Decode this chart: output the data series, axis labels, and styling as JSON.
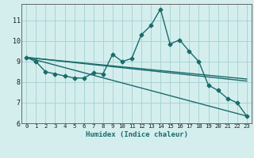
{
  "xlabel": "Humidex (Indice chaleur)",
  "background_color": "#d4eeee",
  "grid_color": "#aad4d4",
  "line_color": "#1a6b6b",
  "xlim": [
    -0.5,
    23.5
  ],
  "ylim": [
    6,
    11.8
  ],
  "yticks": [
    6,
    7,
    8,
    9,
    10,
    11
  ],
  "xticks": [
    0,
    1,
    2,
    3,
    4,
    5,
    6,
    7,
    8,
    9,
    10,
    11,
    12,
    13,
    14,
    15,
    16,
    17,
    18,
    19,
    20,
    21,
    22,
    23
  ],
  "series_main": {
    "x": [
      0,
      1,
      2,
      3,
      4,
      5,
      6,
      7,
      8,
      9,
      10,
      11,
      12,
      13,
      14,
      15,
      16,
      17,
      18,
      19,
      20,
      21,
      22,
      23
    ],
    "y": [
      9.2,
      9.0,
      8.5,
      8.4,
      8.3,
      8.2,
      8.2,
      8.45,
      8.4,
      9.35,
      9.0,
      9.15,
      10.3,
      10.75,
      11.55,
      9.85,
      10.05,
      9.5,
      9.0,
      7.85,
      7.6,
      7.2,
      7.0,
      6.35
    ]
  },
  "series_lines": [
    {
      "x": [
        0,
        23
      ],
      "y": [
        9.2,
        8.05
      ]
    },
    {
      "x": [
        0,
        23
      ],
      "y": [
        9.2,
        8.15
      ]
    },
    {
      "x": [
        0,
        23
      ],
      "y": [
        9.2,
        6.35
      ]
    }
  ]
}
